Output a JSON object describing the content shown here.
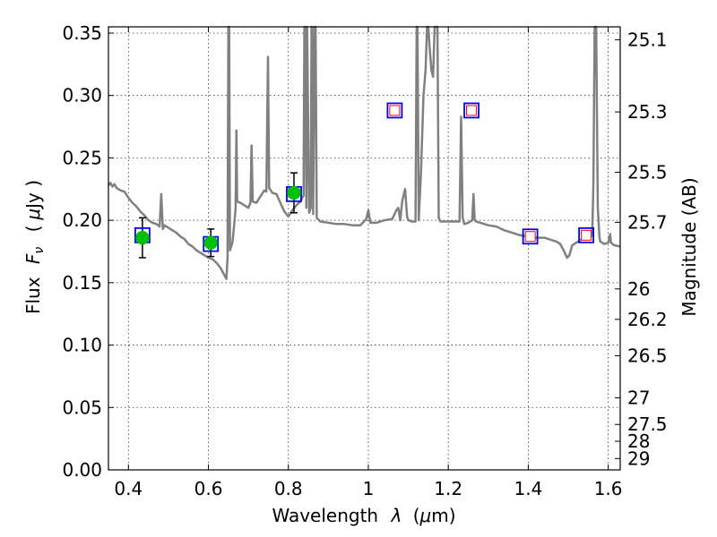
{
  "chart_data": {
    "type": "scatter",
    "title": "",
    "xlabel_text": "Wavelength",
    "xlabel_symbol": "λ",
    "xlabel_unit_open": "(",
    "xlabel_unit_mu": "μ",
    "xlabel_unit_close": "m)",
    "ylabel_text": "Flux",
    "ylabel_symbol": "F",
    "ylabel_symbol_sub": "ν",
    "ylabel_unit_open": "(",
    "ylabel_unit_mu": "μ",
    "ylabel_unit_close": "Jy )",
    "ylabel_right": "Magnitude (AB)",
    "xlim": [
      0.35,
      1.63
    ],
    "ylim": [
      0.0,
      0.355
    ],
    "grid": true,
    "xticks": [
      {
        "value": 0.4,
        "label": "0.4"
      },
      {
        "value": 0.6,
        "label": "0.6"
      },
      {
        "value": 0.8,
        "label": "0.8"
      },
      {
        "value": 1.0,
        "label": "1"
      },
      {
        "value": 1.2,
        "label": "1.2"
      },
      {
        "value": 1.4,
        "label": "1.4"
      },
      {
        "value": 1.6,
        "label": "1.6"
      }
    ],
    "yticks": [
      {
        "value": 0.0,
        "label": "0.00"
      },
      {
        "value": 0.05,
        "label": "0.05"
      },
      {
        "value": 0.1,
        "label": "0.10"
      },
      {
        "value": 0.15,
        "label": "0.15"
      },
      {
        "value": 0.2,
        "label": "0.20"
      },
      {
        "value": 0.25,
        "label": "0.25"
      },
      {
        "value": 0.3,
        "label": "0.30"
      },
      {
        "value": 0.35,
        "label": "0.35"
      }
    ],
    "yticks_right": [
      {
        "flux": 0.3447,
        "label": "25.1"
      },
      {
        "flux": 0.2868,
        "label": "25.3"
      },
      {
        "flux": 0.2385,
        "label": "25.5"
      },
      {
        "flux": 0.1984,
        "label": "25.7"
      },
      {
        "flux": 0.145,
        "label": "26"
      },
      {
        "flux": 0.1206,
        "label": "26.2"
      },
      {
        "flux": 0.0915,
        "label": "26.5"
      },
      {
        "flux": 0.0577,
        "label": "27"
      },
      {
        "flux": 0.0364,
        "label": "27.5"
      },
      {
        "flux": 0.0229,
        "label": "28"
      },
      {
        "flux": 0.0091,
        "label": "29"
      }
    ],
    "model_spectrum": {
      "color": "#808080",
      "points": [
        [
          0.35,
          0.228
        ],
        [
          0.355,
          0.23
        ],
        [
          0.36,
          0.227
        ],
        [
          0.365,
          0.229
        ],
        [
          0.37,
          0.226
        ],
        [
          0.38,
          0.224
        ],
        [
          0.39,
          0.223
        ],
        [
          0.4,
          0.218
        ],
        [
          0.41,
          0.214
        ],
        [
          0.42,
          0.211
        ],
        [
          0.43,
          0.207
        ],
        [
          0.44,
          0.204
        ],
        [
          0.45,
          0.2
        ],
        [
          0.46,
          0.198
        ],
        [
          0.47,
          0.197
        ],
        [
          0.478,
          0.195
        ],
        [
          0.482,
          0.221
        ],
        [
          0.486,
          0.193
        ],
        [
          0.49,
          0.196
        ],
        [
          0.5,
          0.194
        ],
        [
          0.51,
          0.192
        ],
        [
          0.52,
          0.19
        ],
        [
          0.53,
          0.187
        ],
        [
          0.54,
          0.185
        ],
        [
          0.55,
          0.181
        ],
        [
          0.56,
          0.179
        ],
        [
          0.57,
          0.176
        ],
        [
          0.58,
          0.174
        ],
        [
          0.59,
          0.172
        ],
        [
          0.6,
          0.17
        ],
        [
          0.61,
          0.169
        ],
        [
          0.62,
          0.166
        ],
        [
          0.63,
          0.162
        ],
        [
          0.64,
          0.156
        ],
        [
          0.645,
          0.153
        ],
        [
          0.648,
          0.17
        ],
        [
          0.65,
          0.355
        ],
        [
          0.652,
          0.355
        ],
        [
          0.654,
          0.176
        ],
        [
          0.66,
          0.182
        ],
        [
          0.665,
          0.198
        ],
        [
          0.668,
          0.21
        ],
        [
          0.67,
          0.272
        ],
        [
          0.672,
          0.215
        ],
        [
          0.68,
          0.214
        ],
        [
          0.69,
          0.212
        ],
        [
          0.7,
          0.21
        ],
        [
          0.705,
          0.214
        ],
        [
          0.708,
          0.26
        ],
        [
          0.711,
          0.215
        ],
        [
          0.72,
          0.214
        ],
        [
          0.73,
          0.219
        ],
        [
          0.74,
          0.224
        ],
        [
          0.745,
          0.223
        ],
        [
          0.749,
          0.331
        ],
        [
          0.752,
          0.226
        ],
        [
          0.76,
          0.222
        ],
        [
          0.77,
          0.221
        ],
        [
          0.78,
          0.214
        ],
        [
          0.79,
          0.207
        ],
        [
          0.8,
          0.203
        ],
        [
          0.81,
          0.208
        ],
        [
          0.82,
          0.212
        ],
        [
          0.83,
          0.215
        ],
        [
          0.838,
          0.22
        ],
        [
          0.84,
          0.355
        ],
        [
          0.842,
          0.355
        ],
        [
          0.845,
          0.21
        ],
        [
          0.847,
          0.355
        ],
        [
          0.852,
          0.206
        ],
        [
          0.856,
          0.21
        ],
        [
          0.858,
          0.355
        ],
        [
          0.86,
          0.355
        ],
        [
          0.862,
          0.205
        ],
        [
          0.866,
          0.355
        ],
        [
          0.868,
          0.355
        ],
        [
          0.871,
          0.202
        ],
        [
          0.88,
          0.199
        ],
        [
          0.9,
          0.198
        ],
        [
          0.92,
          0.197
        ],
        [
          0.94,
          0.197
        ],
        [
          0.96,
          0.196
        ],
        [
          0.98,
          0.196
        ],
        [
          0.995,
          0.201
        ],
        [
          1.0,
          0.208
        ],
        [
          1.005,
          0.198
        ],
        [
          1.02,
          0.198
        ],
        [
          1.04,
          0.2
        ],
        [
          1.06,
          0.201
        ],
        [
          1.07,
          0.208
        ],
        [
          1.075,
          0.21
        ],
        [
          1.08,
          0.2
        ],
        [
          1.085,
          0.216
        ],
        [
          1.092,
          0.225
        ],
        [
          1.097,
          0.203
        ],
        [
          1.1,
          0.2
        ],
        [
          1.11,
          0.199
        ],
        [
          1.118,
          0.199
        ],
        [
          1.121,
          0.355
        ],
        [
          1.123,
          0.355
        ],
        [
          1.126,
          0.2
        ],
        [
          1.132,
          0.24
        ],
        [
          1.138,
          0.3
        ],
        [
          1.143,
          0.32
        ],
        [
          1.147,
          0.355
        ],
        [
          1.15,
          0.355
        ],
        [
          1.153,
          0.34
        ],
        [
          1.158,
          0.32
        ],
        [
          1.162,
          0.315
        ],
        [
          1.166,
          0.355
        ],
        [
          1.173,
          0.355
        ],
        [
          1.176,
          0.202
        ],
        [
          1.18,
          0.199
        ],
        [
          1.19,
          0.199
        ],
        [
          1.2,
          0.199
        ],
        [
          1.21,
          0.199
        ],
        [
          1.22,
          0.199
        ],
        [
          1.228,
          0.199
        ],
        [
          1.232,
          0.283
        ],
        [
          1.236,
          0.202
        ],
        [
          1.24,
          0.197
        ],
        [
          1.25,
          0.198
        ],
        [
          1.26,
          0.2
        ],
        [
          1.263,
          0.221
        ],
        [
          1.266,
          0.2
        ],
        [
          1.27,
          0.199
        ],
        [
          1.28,
          0.198
        ],
        [
          1.3,
          0.196
        ],
        [
          1.32,
          0.195
        ],
        [
          1.34,
          0.192
        ],
        [
          1.36,
          0.19
        ],
        [
          1.38,
          0.188
        ],
        [
          1.4,
          0.187
        ],
        [
          1.42,
          0.186
        ],
        [
          1.44,
          0.186
        ],
        [
          1.46,
          0.184
        ],
        [
          1.47,
          0.183
        ],
        [
          1.48,
          0.181
        ],
        [
          1.49,
          0.175
        ],
        [
          1.497,
          0.17
        ],
        [
          1.503,
          0.172
        ],
        [
          1.51,
          0.18
        ],
        [
          1.52,
          0.182
        ],
        [
          1.53,
          0.184
        ],
        [
          1.54,
          0.186
        ],
        [
          1.55,
          0.185
        ],
        [
          1.56,
          0.188
        ],
        [
          1.563,
          0.23
        ],
        [
          1.566,
          0.355
        ],
        [
          1.57,
          0.355
        ],
        [
          1.574,
          0.21
        ],
        [
          1.578,
          0.187
        ],
        [
          1.58,
          0.183
        ],
        [
          1.59,
          0.181
        ],
        [
          1.6,
          0.182
        ],
        [
          1.605,
          0.189
        ],
        [
          1.607,
          0.182
        ],
        [
          1.615,
          0.18
        ],
        [
          1.63,
          0.179
        ]
      ]
    },
    "observed": {
      "marker_color": "#00c000",
      "errorbar_color": "#000000",
      "points": [
        {
          "x": 0.435,
          "y": 0.186,
          "err": 0.016
        },
        {
          "x": 0.606,
          "y": 0.182,
          "err": 0.011
        },
        {
          "x": 0.814,
          "y": 0.222,
          "err": 0.016
        }
      ]
    },
    "model_photometry": {
      "outer_color": "#0000ff",
      "inner_color": "#ff0000",
      "points": [
        {
          "x": 0.435,
          "y": 0.188
        },
        {
          "x": 0.606,
          "y": 0.181
        },
        {
          "x": 0.814,
          "y": 0.221
        },
        {
          "x": 1.066,
          "y": 0.288
        },
        {
          "x": 1.258,
          "y": 0.288
        },
        {
          "x": 1.405,
          "y": 0.187
        },
        {
          "x": 1.545,
          "y": 0.188
        }
      ],
      "inner_points": [
        {
          "x": 1.066,
          "y": 0.288
        },
        {
          "x": 1.258,
          "y": 0.288
        },
        {
          "x": 1.405,
          "y": 0.187
        },
        {
          "x": 1.545,
          "y": 0.188
        }
      ]
    }
  }
}
